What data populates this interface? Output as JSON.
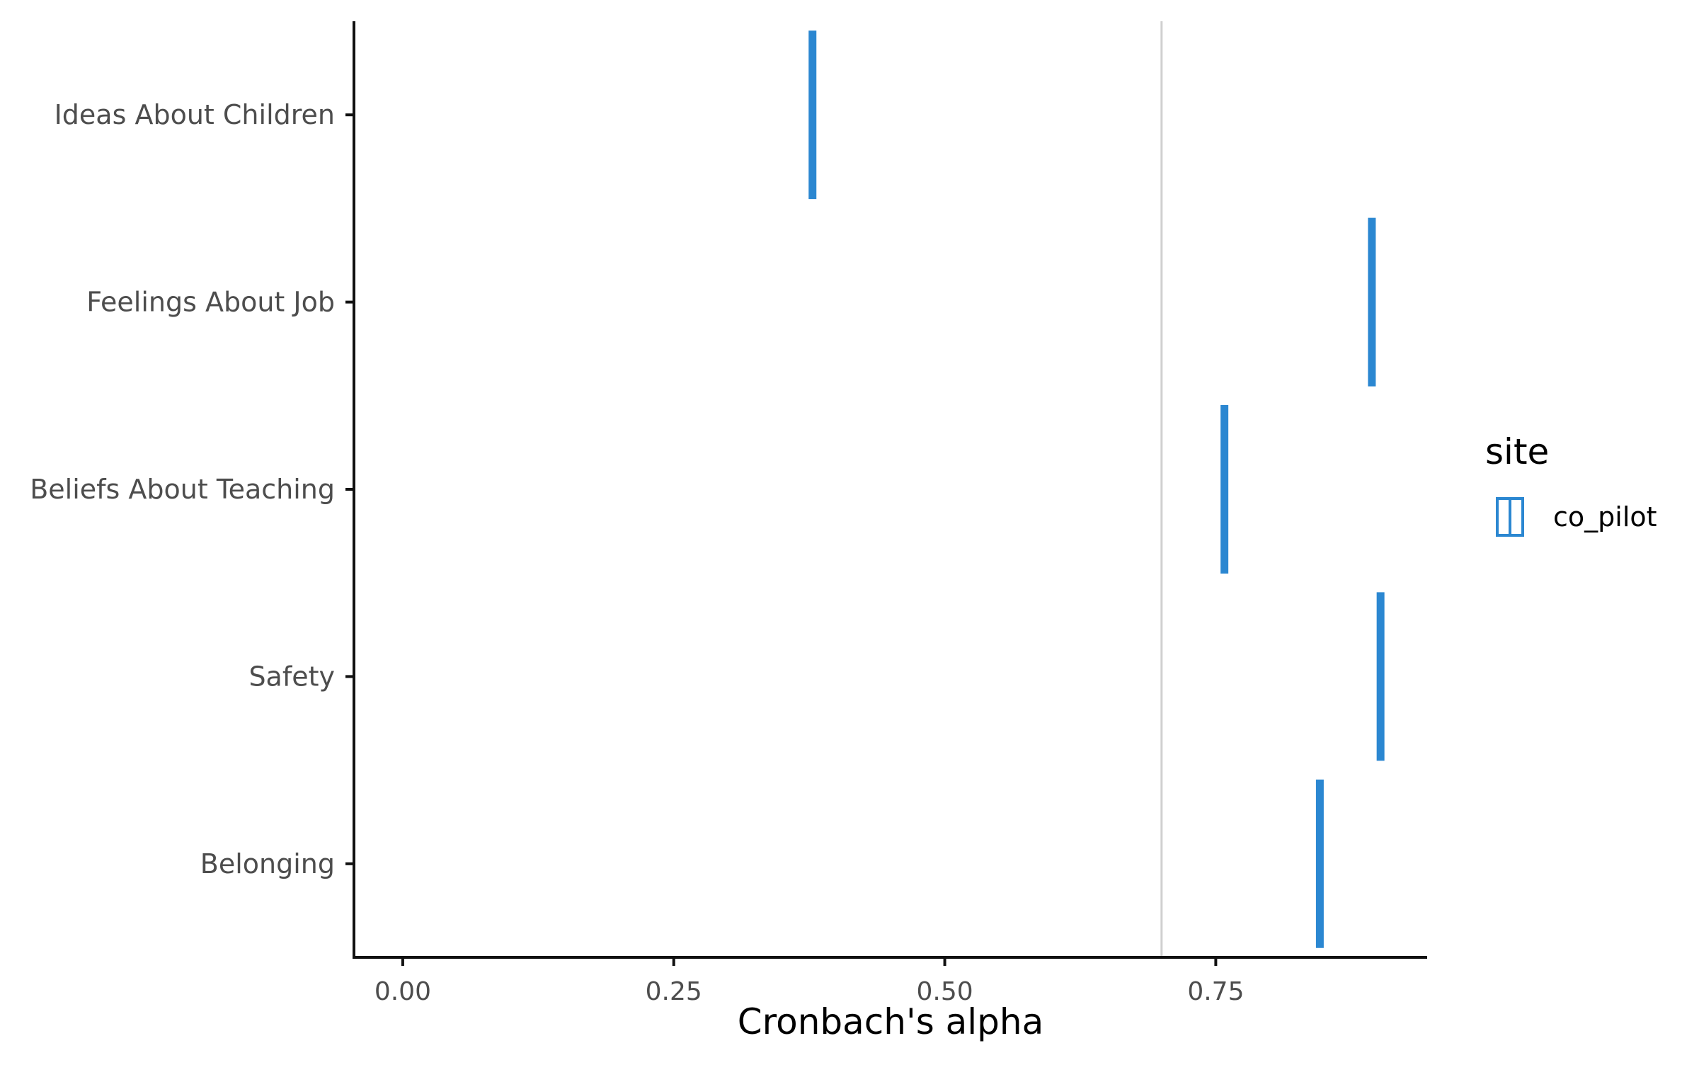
{
  "chart_data": {
    "type": "errorbar",
    "orientation": "horizontal",
    "title": "",
    "xlabel": "Cronbach's alpha",
    "ylabel": "",
    "xlim": [
      -0.045,
      0.945
    ],
    "x_ticks": [
      0.0,
      0.25,
      0.5,
      0.75
    ],
    "x_tick_labels": [
      "0.00",
      "0.25",
      "0.50",
      "0.75"
    ],
    "categories": [
      "Ideas About Children",
      "Feelings About Job",
      "Beliefs About Teaching",
      "Safety",
      "Belonging"
    ],
    "series": [
      {
        "name": "co_pilot",
        "color": "#2b87d1",
        "values": [
          0.378,
          0.894,
          0.758,
          0.902,
          0.846
        ]
      }
    ],
    "reference_line": {
      "x": 0.7,
      "color": "#d0d0d0"
    },
    "legend": {
      "title": "site",
      "position": "right",
      "items": [
        "co_pilot"
      ]
    },
    "grid": false
  }
}
